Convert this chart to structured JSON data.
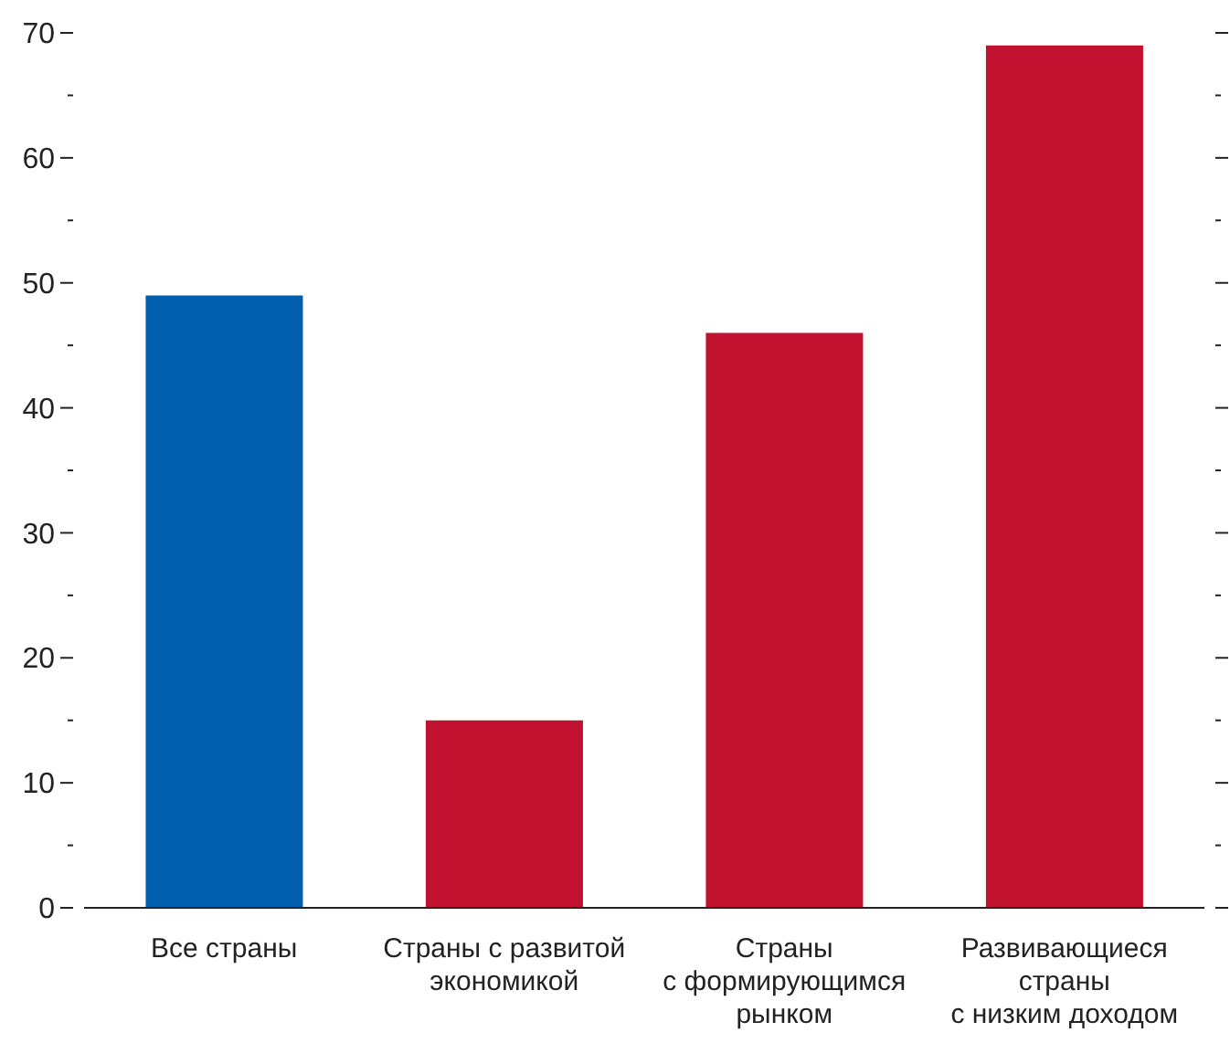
{
  "chart_data": {
    "type": "bar",
    "categories": [
      "Все страны",
      "Страны с развитой\nэкономикой",
      "Страны\nс формирующимся\nрынком",
      "Развивающиеся\nстраны\nс низким доходом"
    ],
    "values": [
      49,
      15,
      46,
      69
    ],
    "colors": [
      "#005eac",
      "#c0112f",
      "#c0112f",
      "#c0112f"
    ],
    "ylim": [
      0,
      70
    ],
    "yticks": [
      0,
      {
        "value": 5,
        "label": null
      },
      10,
      {
        "value": 15,
        "label": null
      },
      20,
      {
        "value": 25,
        "label": null
      },
      30,
      {
        "value": 35,
        "label": null
      },
      40,
      {
        "value": 45,
        "label": null
      },
      50,
      {
        "value": 55,
        "label": null
      },
      60,
      {
        "value": 65,
        "label": null
      },
      70
    ],
    "grid": false,
    "legend": false
  }
}
